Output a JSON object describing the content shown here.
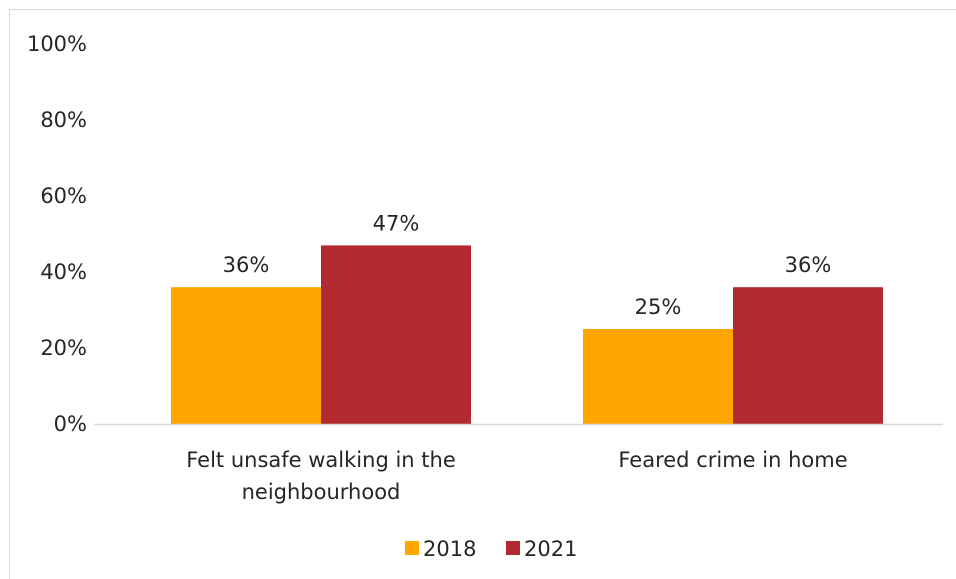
{
  "chart_data": {
    "type": "bar",
    "categories": [
      [
        "Felt unsafe walking in the",
        "neighbourhood"
      ],
      [
        "Feared crime in home"
      ]
    ],
    "series": [
      {
        "name": "2018",
        "values": [
          36,
          25
        ],
        "labels": [
          "36%",
          "25%"
        ],
        "color": "#FFA500"
      },
      {
        "name": "2021",
        "values": [
          47,
          36
        ],
        "labels": [
          "47%",
          "36%"
        ],
        "color": "#B22A30"
      }
    ],
    "ylim": [
      0,
      100
    ],
    "yticks": [
      0,
      20,
      40,
      60,
      80,
      100
    ],
    "ytick_labels": [
      "0%",
      "20%",
      "40%",
      "60%",
      "80%",
      "100%"
    ],
    "grid": false,
    "legend": "bottom",
    "axis_color": "#d9d9d9"
  }
}
